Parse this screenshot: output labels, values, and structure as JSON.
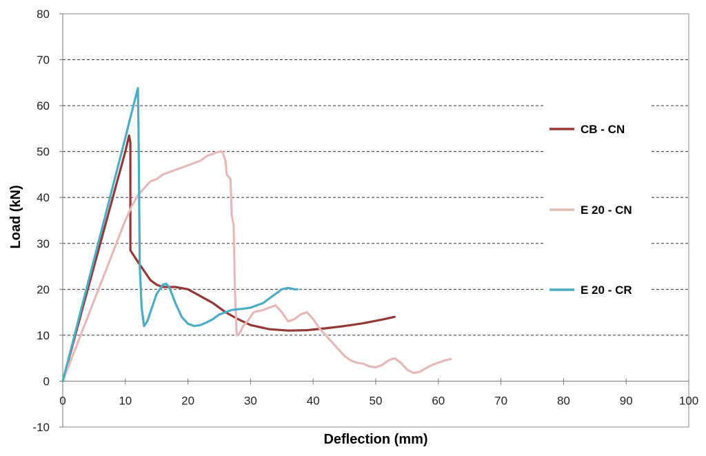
{
  "chart_data": {
    "type": "line",
    "title": "",
    "xlabel": "Deflection (mm)",
    "ylabel": "Load (kN)",
    "xlim": [
      0,
      100
    ],
    "ylim": [
      -10,
      80
    ],
    "x_ticks": [
      "0",
      "10",
      "20",
      "30",
      "40",
      "50",
      "60",
      "70",
      "80",
      "90",
      "100"
    ],
    "y_ticks": [
      "-10",
      "0",
      "10",
      "20",
      "30",
      "40",
      "50",
      "60",
      "70",
      "80"
    ],
    "grid": "horizontal dashed",
    "legend_position": "right",
    "series": [
      {
        "name": "CB - CN",
        "color": "#953735",
        "points": [
          [
            0,
            0
          ],
          [
            1,
            5
          ],
          [
            2,
            10
          ],
          [
            3,
            15
          ],
          [
            4,
            20
          ],
          [
            5,
            25
          ],
          [
            6,
            30
          ],
          [
            7,
            35
          ],
          [
            8,
            40
          ],
          [
            9,
            45
          ],
          [
            10,
            50
          ],
          [
            10.6,
            53.5
          ],
          [
            10.8,
            52
          ],
          [
            10.8,
            28.5
          ],
          [
            11.5,
            27
          ],
          [
            12.5,
            25
          ],
          [
            14,
            22
          ],
          [
            15,
            21
          ],
          [
            16,
            20.5
          ],
          [
            18,
            20.5
          ],
          [
            20,
            20
          ],
          [
            22,
            18.5
          ],
          [
            24,
            17
          ],
          [
            26,
            15
          ],
          [
            28,
            13.5
          ],
          [
            30,
            12.2
          ],
          [
            33,
            11.3
          ],
          [
            36,
            11
          ],
          [
            39,
            11.1
          ],
          [
            42,
            11.5
          ],
          [
            45,
            12
          ],
          [
            48,
            12.6
          ],
          [
            51,
            13.4
          ],
          [
            53,
            14
          ]
        ]
      },
      {
        "name": "E 20 - CN",
        "color": "#E6B9B8",
        "points": [
          [
            0,
            0
          ],
          [
            1,
            3.5
          ],
          [
            2,
            7
          ],
          [
            3,
            10.5
          ],
          [
            4,
            14
          ],
          [
            5,
            17.5
          ],
          [
            6,
            21
          ],
          [
            7,
            24.5
          ],
          [
            8,
            28
          ],
          [
            9,
            31.5
          ],
          [
            10,
            35
          ],
          [
            11,
            38
          ],
          [
            12,
            40.5
          ],
          [
            13,
            42
          ],
          [
            14,
            43.5
          ],
          [
            15,
            44
          ],
          [
            16,
            45
          ],
          [
            17,
            45.5
          ],
          [
            18,
            46
          ],
          [
            19,
            46.5
          ],
          [
            20,
            47
          ],
          [
            21,
            47.5
          ],
          [
            22,
            48
          ],
          [
            23,
            49
          ],
          [
            24,
            49.5
          ],
          [
            25,
            50
          ],
          [
            25.5,
            50
          ],
          [
            26,
            48
          ],
          [
            26.2,
            45
          ],
          [
            26.8,
            44
          ],
          [
            27,
            36
          ],
          [
            27.3,
            34
          ],
          [
            27.5,
            20
          ],
          [
            27.8,
            10
          ],
          [
            28.3,
            10.5
          ],
          [
            28.8,
            12
          ],
          [
            29.5,
            13
          ],
          [
            30.5,
            15
          ],
          [
            32,
            15.5
          ],
          [
            33,
            16
          ],
          [
            34,
            16.5
          ],
          [
            35,
            15
          ],
          [
            36,
            13
          ],
          [
            37,
            13.5
          ],
          [
            38,
            14.5
          ],
          [
            39,
            15
          ],
          [
            40,
            13.5
          ],
          [
            41,
            11.5
          ],
          [
            42,
            10
          ],
          [
            43,
            8.5
          ],
          [
            44,
            7
          ],
          [
            45,
            5.5
          ],
          [
            46,
            4.5
          ],
          [
            47,
            4
          ],
          [
            48,
            3.8
          ],
          [
            49,
            3.2
          ],
          [
            50,
            3
          ],
          [
            51,
            3.5
          ],
          [
            52,
            4.5
          ],
          [
            53,
            5
          ],
          [
            54,
            4
          ],
          [
            55,
            2.5
          ],
          [
            56,
            1.8
          ],
          [
            57,
            2
          ],
          [
            58,
            2.8
          ],
          [
            59,
            3.5
          ],
          [
            60,
            4
          ],
          [
            61,
            4.5
          ],
          [
            62,
            4.8
          ]
        ]
      },
      {
        "name": "E 20 - CR",
        "color": "#4BACC6",
        "points": [
          [
            0,
            0
          ],
          [
            1,
            5.3
          ],
          [
            2,
            10.6
          ],
          [
            3,
            15.9
          ],
          [
            4,
            21.2
          ],
          [
            5,
            26.5
          ],
          [
            6,
            31.8
          ],
          [
            7,
            37.1
          ],
          [
            8,
            42.4
          ],
          [
            9,
            47.7
          ],
          [
            10,
            53
          ],
          [
            11,
            58.5
          ],
          [
            12,
            63.8
          ],
          [
            12.1,
            55
          ],
          [
            12.2,
            40
          ],
          [
            12.3,
            25
          ],
          [
            12.6,
            16
          ],
          [
            13,
            12
          ],
          [
            13.5,
            13
          ],
          [
            14,
            15
          ],
          [
            15,
            19
          ],
          [
            16,
            21
          ],
          [
            16.5,
            21.2
          ],
          [
            17,
            20.5
          ],
          [
            18,
            17
          ],
          [
            19,
            14
          ],
          [
            20,
            12.5
          ],
          [
            21,
            12
          ],
          [
            22,
            12.2
          ],
          [
            23,
            12.8
          ],
          [
            24,
            13.5
          ],
          [
            25,
            14.5
          ],
          [
            26,
            15
          ],
          [
            27,
            15.5
          ],
          [
            29,
            15.8
          ],
          [
            30,
            16
          ],
          [
            31,
            16.5
          ],
          [
            32,
            17
          ],
          [
            33,
            18
          ],
          [
            34,
            19
          ],
          [
            35,
            20
          ],
          [
            36,
            20.3
          ],
          [
            37,
            20
          ],
          [
            37.5,
            20
          ]
        ]
      }
    ]
  }
}
